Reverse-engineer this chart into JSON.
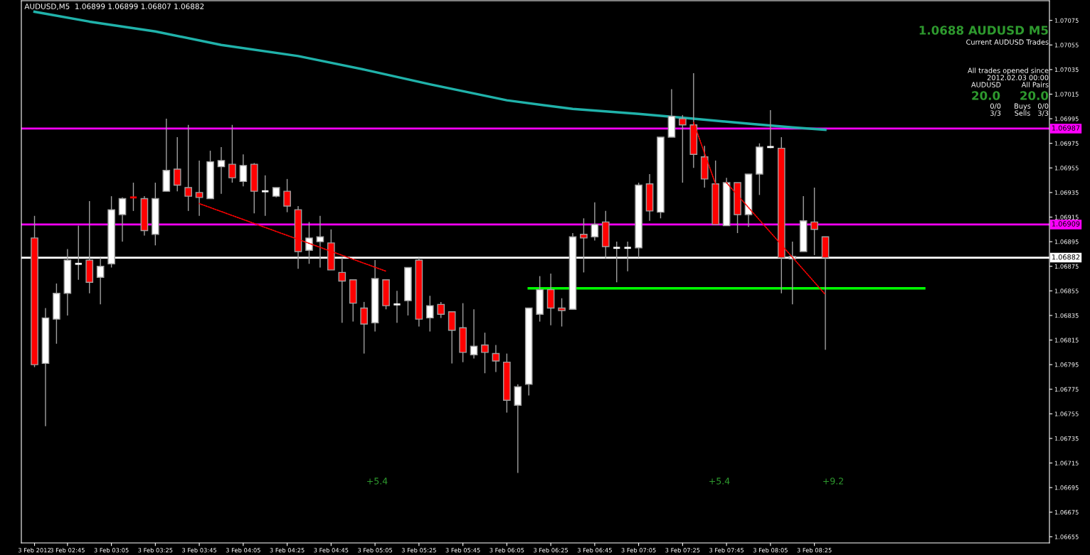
{
  "chart_data": {
    "type": "candlestick",
    "title": "AUDUSD,M5  1.06899 1.06899 1.06807 1.06882",
    "xlim": [
      "2012-02-03T02:24",
      "2012-02-03T10:12"
    ],
    "ylim": [
      1.0665,
      1.07091
    ],
    "xticks": [
      {
        "value": "2012-02-03T02:30",
        "label": "3 Feb 2012"
      },
      {
        "value": "2012-02-03T02:45",
        "label": "3 Feb 02:45"
      },
      {
        "value": "2012-02-03T03:05",
        "label": "3 Feb 03:05"
      },
      {
        "value": "2012-02-03T03:25",
        "label": "3 Feb 03:25"
      },
      {
        "value": "2012-02-03T03:45",
        "label": "3 Feb 03:45"
      },
      {
        "value": "2012-02-03T04:05",
        "label": "3 Feb 04:05"
      },
      {
        "value": "2012-02-03T04:25",
        "label": "3 Feb 04:25"
      },
      {
        "value": "2012-02-03T04:45",
        "label": "3 Feb 04:45"
      },
      {
        "value": "2012-02-03T05:05",
        "label": "3 Feb 05:05"
      },
      {
        "value": "2012-02-03T05:25",
        "label": "3 Feb 05:25"
      },
      {
        "value": "2012-02-03T05:45",
        "label": "3 Feb 05:45"
      },
      {
        "value": "2012-02-03T06:05",
        "label": "3 Feb 06:05"
      },
      {
        "value": "2012-02-03T06:25",
        "label": "3 Feb 06:25"
      },
      {
        "value": "2012-02-03T06:45",
        "label": "3 Feb 06:45"
      },
      {
        "value": "2012-02-03T07:05",
        "label": "3 Feb 07:05"
      },
      {
        "value": "2012-02-03T07:25",
        "label": "3 Feb 07:25"
      },
      {
        "value": "2012-02-03T07:45",
        "label": "3 Feb 07:45"
      },
      {
        "value": "2012-02-03T08:05",
        "label": "3 Feb 08:05"
      },
      {
        "value": "2012-02-03T08:25",
        "label": "3 Feb 08:25"
      }
    ],
    "yticks": [
      1.06655,
      1.06675,
      1.06695,
      1.06715,
      1.06735,
      1.06755,
      1.06775,
      1.06795,
      1.06815,
      1.06835,
      1.06855,
      1.06875,
      1.06895,
      1.06915,
      1.06935,
      1.06955,
      1.06975,
      1.06995,
      1.07015,
      1.07035,
      1.07055,
      1.07075
    ],
    "grid": false,
    "legend": false,
    "ref_lines": [
      {
        "axis": "y",
        "value": 1.06987,
        "label": "1.06987",
        "color": "#ff00ff",
        "line_style": "solid"
      },
      {
        "axis": "y",
        "value": 1.06909,
        "label": "1.06909",
        "color": "#ff00ff",
        "line_style": "solid"
      },
      {
        "axis": "y",
        "value": 1.06882,
        "label": "1.06882",
        "color": "#ffffff",
        "line_style": "solid"
      }
    ],
    "series": [
      {
        "type": "line",
        "color": "#20b2aa",
        "line_style": "solid",
        "x": [
          "2012-02-03T02:30",
          "2012-02-03T02:55",
          "2012-02-03T03:25",
          "2012-02-03T03:55",
          "2012-02-03T04:30",
          "2012-02-03T05:00",
          "2012-02-03T05:30",
          "2012-02-03T06:05",
          "2012-02-03T06:35",
          "2012-02-03T07:05",
          "2012-02-03T07:30",
          "2012-02-03T07:55",
          "2012-02-03T08:15",
          "2012-02-03T08:30"
        ],
        "values": [
          1.07082,
          1.07074,
          1.07066,
          1.07055,
          1.07046,
          1.07035,
          1.07023,
          1.0701,
          1.07003,
          1.06999,
          1.06995,
          1.06991,
          1.06988,
          1.06986
        ]
      },
      {
        "type": "line",
        "color": "#00ff00",
        "line_style": "solid",
        "x": [
          "2012-02-03T06:15",
          "2012-02-03T09:15"
        ],
        "values": [
          1.06857,
          1.06857
        ]
      },
      {
        "type": "line",
        "color": "#ff0000",
        "line_style": "dotted",
        "x": [
          "2012-02-03T03:45",
          "2012-02-03T05:10"
        ],
        "values": [
          1.06926,
          1.06871
        ]
      },
      {
        "type": "line",
        "color": "#ff0000",
        "line_style": "dotted",
        "x": [
          "2012-02-03T07:30",
          "2012-02-03T07:40"
        ],
        "values": [
          1.06992,
          1.06942
        ]
      },
      {
        "type": "line",
        "color": "#ff0000",
        "line_style": "dotted",
        "x": [
          "2012-02-03T07:45",
          "2012-02-03T08:30"
        ],
        "values": [
          1.06943,
          1.06852
        ]
      },
      {
        "type": "candlestick",
        "x": [
          "2012-02-03T02:30",
          "2012-02-03T02:35",
          "2012-02-03T02:40",
          "2012-02-03T02:45",
          "2012-02-03T02:50",
          "2012-02-03T02:55",
          "2012-02-03T03:00",
          "2012-02-03T03:05",
          "2012-02-03T03:10",
          "2012-02-03T03:15",
          "2012-02-03T03:20",
          "2012-02-03T03:25",
          "2012-02-03T03:30",
          "2012-02-03T03:35",
          "2012-02-03T03:40",
          "2012-02-03T03:45",
          "2012-02-03T03:50",
          "2012-02-03T03:55",
          "2012-02-03T04:00",
          "2012-02-03T04:05",
          "2012-02-03T04:10",
          "2012-02-03T04:15",
          "2012-02-03T04:20",
          "2012-02-03T04:25",
          "2012-02-03T04:30",
          "2012-02-03T04:35",
          "2012-02-03T04:40",
          "2012-02-03T04:45",
          "2012-02-03T04:50",
          "2012-02-03T04:55",
          "2012-02-03T05:00",
          "2012-02-03T05:05",
          "2012-02-03T05:10",
          "2012-02-03T05:15",
          "2012-02-03T05:20",
          "2012-02-03T05:25",
          "2012-02-03T05:30",
          "2012-02-03T05:35",
          "2012-02-03T05:40",
          "2012-02-03T05:45",
          "2012-02-03T05:50",
          "2012-02-03T05:55",
          "2012-02-03T06:00",
          "2012-02-03T06:05",
          "2012-02-03T06:10",
          "2012-02-03T06:15",
          "2012-02-03T06:20",
          "2012-02-03T06:25",
          "2012-02-03T06:30",
          "2012-02-03T06:35",
          "2012-02-03T06:40",
          "2012-02-03T06:45",
          "2012-02-03T06:50",
          "2012-02-03T06:55",
          "2012-02-03T07:00",
          "2012-02-03T07:05",
          "2012-02-03T07:10",
          "2012-02-03T07:15",
          "2012-02-03T07:20",
          "2012-02-03T07:25",
          "2012-02-03T07:30",
          "2012-02-03T07:35",
          "2012-02-03T07:40",
          "2012-02-03T07:45",
          "2012-02-03T07:50",
          "2012-02-03T07:55",
          "2012-02-03T08:00",
          "2012-02-03T08:05",
          "2012-02-03T08:10",
          "2012-02-03T08:15",
          "2012-02-03T08:20",
          "2012-02-03T08:25",
          "2012-02-03T08:30"
        ],
        "ohlc": [
          [
            1.06898,
            1.06916,
            1.06793,
            1.06795
          ],
          [
            1.06796,
            1.06841,
            1.06745,
            1.06833
          ],
          [
            1.06832,
            1.06861,
            1.06812,
            1.06853
          ],
          [
            1.06853,
            1.06889,
            1.06835,
            1.0688
          ],
          [
            1.06877,
            1.06908,
            1.06864,
            1.06877
          ],
          [
            1.0688,
            1.06928,
            1.06853,
            1.06862
          ],
          [
            1.06866,
            1.06882,
            1.06844,
            1.06875
          ],
          [
            1.06877,
            1.06932,
            1.06874,
            1.06921
          ],
          [
            1.06917,
            1.06931,
            1.06895,
            1.0693
          ],
          [
            1.06931,
            1.06943,
            1.0692,
            1.06931
          ],
          [
            1.0693,
            1.06932,
            1.069,
            1.06904
          ],
          [
            1.06901,
            1.06943,
            1.06892,
            1.0693
          ],
          [
            1.06936,
            1.06995,
            1.06936,
            1.06953
          ],
          [
            1.06954,
            1.0698,
            1.06936,
            1.06941
          ],
          [
            1.06939,
            1.0699,
            1.0692,
            1.06932
          ],
          [
            1.06935,
            1.06961,
            1.06916,
            1.06931
          ],
          [
            1.0693,
            1.06969,
            1.0693,
            1.0696
          ],
          [
            1.06956,
            1.06972,
            1.06934,
            1.06961
          ],
          [
            1.06958,
            1.0699,
            1.06943,
            1.06947
          ],
          [
            1.06944,
            1.06966,
            1.0694,
            1.06957
          ],
          [
            1.06958,
            1.06959,
            1.06918,
            1.06936
          ],
          [
            1.06936,
            1.06949,
            1.06916,
            1.06936
          ],
          [
            1.06932,
            1.06939,
            1.06931,
            1.06939
          ],
          [
            1.06936,
            1.06946,
            1.06919,
            1.06924
          ],
          [
            1.06921,
            1.06924,
            1.06873,
            1.06887
          ],
          [
            1.06888,
            1.06911,
            1.06877,
            1.06898
          ],
          [
            1.06895,
            1.06916,
            1.06874,
            1.06899
          ],
          [
            1.06894,
            1.06905,
            1.06872,
            1.06872
          ],
          [
            1.0687,
            1.06882,
            1.06829,
            1.06863
          ],
          [
            1.06864,
            1.06864,
            1.0683,
            1.06845
          ],
          [
            1.06841,
            1.06846,
            1.06804,
            1.06828
          ],
          [
            1.06829,
            1.0688,
            1.06822,
            1.06865
          ],
          [
            1.06864,
            1.06864,
            1.0684,
            1.06843
          ],
          [
            1.06844,
            1.06855,
            1.06829,
            1.06844
          ],
          [
            1.06847,
            1.06874,
            1.06835,
            1.06874
          ],
          [
            1.0688,
            1.06882,
            1.06826,
            1.06832
          ],
          [
            1.06833,
            1.06851,
            1.06822,
            1.06843
          ],
          [
            1.06844,
            1.06846,
            1.06833,
            1.06836
          ],
          [
            1.06838,
            1.06838,
            1.06796,
            1.06823
          ],
          [
            1.06825,
            1.06845,
            1.06797,
            1.06805
          ],
          [
            1.06803,
            1.0684,
            1.068,
            1.0681
          ],
          [
            1.06811,
            1.06821,
            1.06788,
            1.06805
          ],
          [
            1.06804,
            1.06811,
            1.06789,
            1.06798
          ],
          [
            1.06797,
            1.06804,
            1.06756,
            1.06766
          ],
          [
            1.06762,
            1.06779,
            1.06707,
            1.06777
          ],
          [
            1.06779,
            1.06841,
            1.0677,
            1.06841
          ],
          [
            1.06836,
            1.06867,
            1.0683,
            1.06856
          ],
          [
            1.06856,
            1.06869,
            1.06827,
            1.06841
          ],
          [
            1.06841,
            1.06849,
            1.06826,
            1.06839
          ],
          [
            1.0684,
            1.06902,
            1.0684,
            1.06899
          ],
          [
            1.06901,
            1.06914,
            1.0687,
            1.06898
          ],
          [
            1.06899,
            1.06927,
            1.06896,
            1.06909
          ],
          [
            1.06911,
            1.0692,
            1.06881,
            1.06891
          ],
          [
            1.0689,
            1.06895,
            1.06862,
            1.0689
          ],
          [
            1.0689,
            1.06895,
            1.06871,
            1.0689
          ],
          [
            1.0689,
            1.06943,
            1.06882,
            1.06941
          ],
          [
            1.06942,
            1.0695,
            1.06912,
            1.0692
          ],
          [
            1.06919,
            1.0698,
            1.06914,
            1.0698
          ],
          [
            1.0698,
            1.07019,
            1.0698,
            1.06997
          ],
          [
            1.06995,
            1.06998,
            1.06943,
            1.0699
          ],
          [
            1.0699,
            1.07032,
            1.06955,
            1.06966
          ],
          [
            1.06964,
            1.06973,
            1.06939,
            1.06946
          ],
          [
            1.06942,
            1.06961,
            1.06909,
            1.06909
          ],
          [
            1.06908,
            1.06947,
            1.06908,
            1.06943
          ],
          [
            1.06943,
            1.06943,
            1.06902,
            1.06917
          ],
          [
            1.06917,
            1.0695,
            1.06907,
            1.0695
          ],
          [
            1.0695,
            1.06975,
            1.06933,
            1.06972
          ],
          [
            1.06972,
            1.07002,
            1.06971,
            1.06972
          ],
          [
            1.06971,
            1.0698,
            1.06853,
            1.06882
          ],
          [
            1.06881,
            1.06895,
            1.06844,
            1.06883
          ],
          [
            1.06887,
            1.06932,
            1.06887,
            1.06912
          ],
          [
            1.06911,
            1.06939,
            1.06884,
            1.06905
          ],
          [
            1.06899,
            1.06899,
            1.06807,
            1.06882
          ]
        ],
        "colors": [
          "#ff0000",
          "#ffffff",
          "#ffffff",
          "#ffffff",
          "#ffffff",
          "#ff0000",
          "#ffffff",
          "#ffffff",
          "#ffffff",
          "#ff0000",
          "#ff0000",
          "#ffffff",
          "#ffffff",
          "#ff0000",
          "#ff0000",
          "#ff0000",
          "#ffffff",
          "#ffffff",
          "#ff0000",
          "#ffffff",
          "#ff0000",
          "#ffffff",
          "#ffffff",
          "#ff0000",
          "#ff0000",
          "#ffffff",
          "#ffffff",
          "#ff0000",
          "#ff0000",
          "#ff0000",
          "#ff0000",
          "#ffffff",
          "#ff0000",
          "#ffffff",
          "#ffffff",
          "#ff0000",
          "#ffffff",
          "#ff0000",
          "#ff0000",
          "#ff0000",
          "#ffffff",
          "#ff0000",
          "#ff0000",
          "#ff0000",
          "#ffffff",
          "#ffffff",
          "#ffffff",
          "#ff0000",
          "#ff0000",
          "#ffffff",
          "#ff0000",
          "#ffffff",
          "#ff0000",
          "#ffffff",
          "#ffffff",
          "#ffffff",
          "#ff0000",
          "#ffffff",
          "#ffffff",
          "#ff0000",
          "#ff0000",
          "#ff0000",
          "#ff0000",
          "#ffffff",
          "#ff0000",
          "#ffffff",
          "#ffffff",
          "#ffffff",
          "#ff0000",
          "#ffffff",
          "#ffffff",
          "#ff0000",
          "#ff0000"
        ]
      }
    ],
    "annotations": [
      "+5.4",
      "+5.4",
      "+9.2",
      "1.0688 AUDUSD M5",
      "Current AUDUSD Trades",
      "All trades opened since",
      "2012.02.03 00:00",
      "AUDUSD",
      "All Pairs",
      "20.0",
      "20.0",
      "0/0",
      "Buys",
      "0/0",
      "3/3",
      "Sells",
      "3/3"
    ]
  }
}
